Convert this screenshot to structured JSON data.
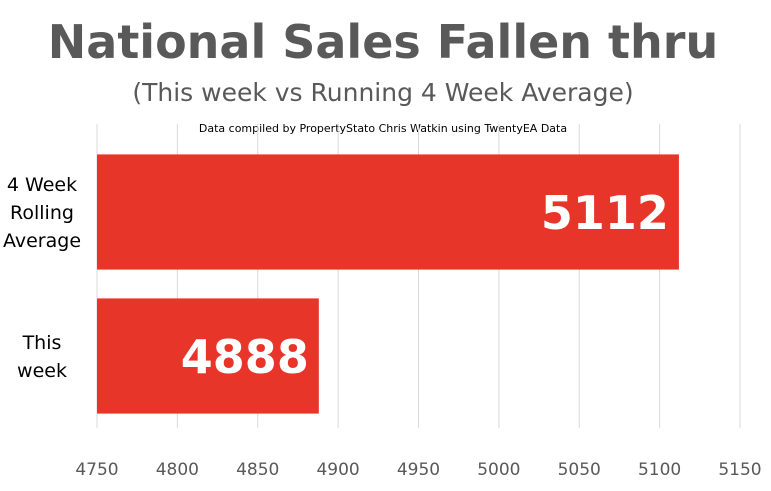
{
  "chart_data": {
    "type": "bar",
    "orientation": "horizontal",
    "title": "National Sales Fallen thru",
    "subtitle": "(This week vs Running 4 Week Average)",
    "note": "Data compiled by PropertyStato Chris Watkin using TwentyEA Data",
    "categories": [
      {
        "lines": [
          "4 Week",
          "Rolling",
          "Average"
        ]
      },
      {
        "lines": [
          "This",
          "week"
        ]
      }
    ],
    "values": [
      5112,
      4888
    ],
    "data_labels": [
      "5112",
      "4888"
    ],
    "xlim": [
      4750,
      5150
    ],
    "xticks": [
      4750,
      4800,
      4850,
      4900,
      4950,
      5000,
      5050,
      5100,
      5150
    ],
    "grid": true,
    "legend": "none",
    "bar_color": "#E8352A",
    "grid_color": "#D9D9D9",
    "title_color": "#595959"
  }
}
